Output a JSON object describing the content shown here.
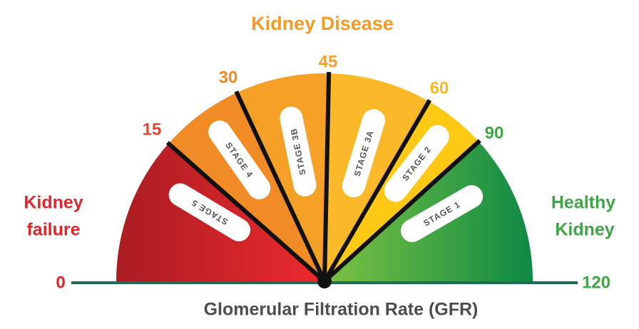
{
  "title": "Kidney Disease",
  "left_label": [
    "Kidney",
    "failure"
  ],
  "right_label": [
    "Healthy",
    "Kidney"
  ],
  "axis_title": "Glomerular Filtration Rate (GFR)",
  "scale": [
    0,
    15,
    30,
    45,
    60,
    90,
    120
  ],
  "stages": [
    "STAGE 5",
    "STAGE 4",
    "STAGE 3B",
    "STAGE 3A",
    "STAGE 2",
    "STAGE 1"
  ]
}
